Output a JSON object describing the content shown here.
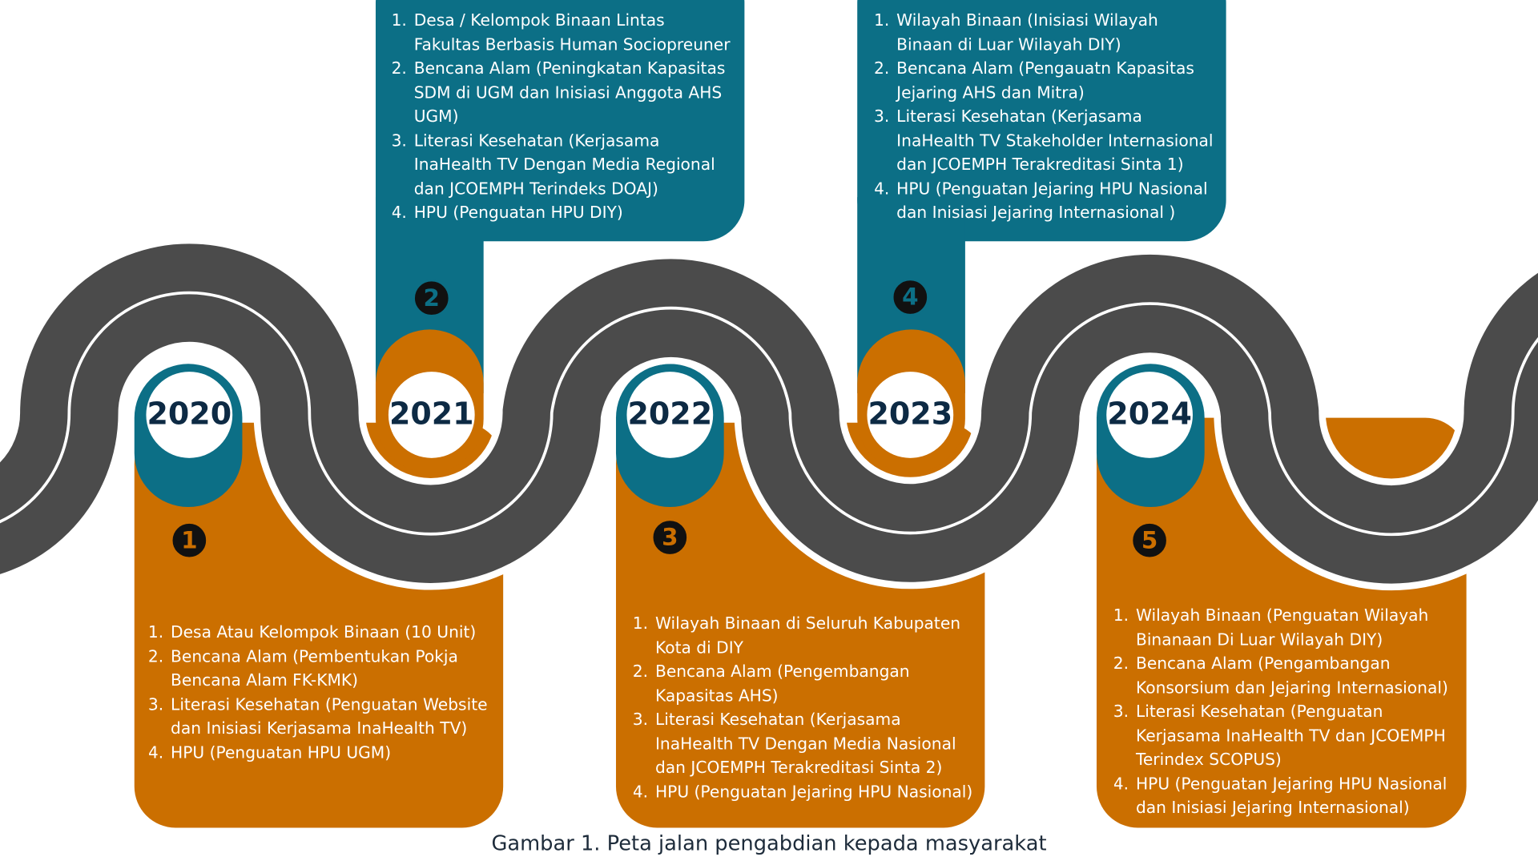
{
  "caption": "Gambar 1. Peta jalan pengabdian kepada masyarakat",
  "milestones": [
    {
      "year": "2020",
      "number": "1",
      "items": [
        "Desa Atau Kelompok Binaan  (10 Unit)",
        "Bencana Alam (Pembentukan Pokja Bencana Alam FK-KMK)",
        "Literasi Kesehatan (Penguatan Website dan Inisiasi Kerjasama InaHealth TV)",
        "HPU (Penguatan HPU UGM)"
      ]
    },
    {
      "year": "2021",
      "number": "2",
      "items": [
        "Desa / Kelompok Binaan Lintas Fakultas Berbasis Human Sociopreuner",
        "Bencana Alam (Peningkatan Kapasitas SDM di UGM dan Inisiasi Anggota AHS UGM)",
        "Literasi Kesehatan (Kerjasama InaHealth TV Dengan Media Regional dan JCOEMPH Terindeks DOAJ)",
        "HPU (Penguatan HPU DIY)"
      ]
    },
    {
      "year": "2022",
      "number": "3",
      "items": [
        "Wilayah Binaan di Seluruh Kabupaten Kota di DIY",
        "Bencana Alam (Pengembangan Kapasitas AHS)",
        "Literasi Kesehatan (Kerjasama InaHealth TV  Dengan Media Nasional dan JCOEMPH Terakreditasi Sinta 2)",
        "HPU (Penguatan Jejaring HPU Nasional)"
      ]
    },
    {
      "year": "2023",
      "number": "4",
      "items": [
        "Wilayah Binaan (Inisiasi Wilayah Binaan di Luar Wilayah DIY)",
        "Bencana Alam (Pengauatn Kapasitas Jejaring AHS dan Mitra)",
        "Literasi Kesehatan (Kerjasama InaHealth TV Stakeholder Internasional dan JCOEMPH Terakreditasi Sinta 1)",
        "HPU (Penguatan Jejaring HPU Nasional dan Inisiasi Jejaring Internasional )"
      ]
    },
    {
      "year": "2024",
      "number": "5",
      "items": [
        "Wilayah Binaan (Penguatan Wilayah Binanaan Di Luar Wilayah DIY)",
        "Bencana Alam (Pengambangan Konsorsium dan Jejaring Internasional)",
        "Literasi Kesehatan  (Penguatan Kerjasama InaHealth TV dan JCOEMPH Terindex SCOPUS)",
        "HPU (Penguatan Jejaring HPU Nasional dan Inisiasi Jejaring Internasional)"
      ]
    }
  ]
}
